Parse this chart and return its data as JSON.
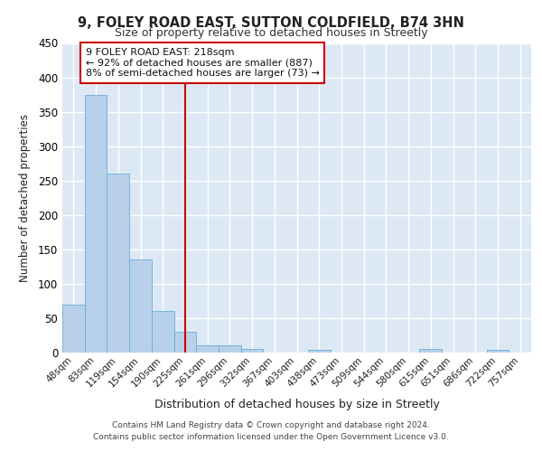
{
  "title1": "9, FOLEY ROAD EAST, SUTTON COLDFIELD, B74 3HN",
  "title2": "Size of property relative to detached houses in Streetly",
  "xlabel": "Distribution of detached houses by size in Streetly",
  "ylabel": "Number of detached properties",
  "categories": [
    "48sqm",
    "83sqm",
    "119sqm",
    "154sqm",
    "190sqm",
    "225sqm",
    "261sqm",
    "296sqm",
    "332sqm",
    "367sqm",
    "403sqm",
    "438sqm",
    "473sqm",
    "509sqm",
    "544sqm",
    "580sqm",
    "615sqm",
    "651sqm",
    "686sqm",
    "722sqm",
    "757sqm"
  ],
  "values": [
    70,
    375,
    260,
    135,
    60,
    30,
    10,
    10,
    5,
    0,
    0,
    4,
    0,
    0,
    0,
    0,
    5,
    0,
    0,
    4,
    0
  ],
  "bar_color": "#b8d0ea",
  "bar_edge_color": "#6aaed6",
  "vline_color": "#cc0000",
  "vline_x": 5,
  "annotation_line1": "9 FOLEY ROAD EAST: 218sqm",
  "annotation_line2": "← 92% of detached houses are smaller (887)",
  "annotation_line3": "8% of semi-detached houses are larger (73) →",
  "ann_box_color": "#cc0000",
  "ylim": [
    0,
    450
  ],
  "yticks": [
    0,
    50,
    100,
    150,
    200,
    250,
    300,
    350,
    400,
    450
  ],
  "bg_color": "#dce9f5",
  "footer1": "Contains HM Land Registry data © Crown copyright and database right 2024.",
  "footer2": "Contains public sector information licensed under the Open Government Licence v3.0."
}
